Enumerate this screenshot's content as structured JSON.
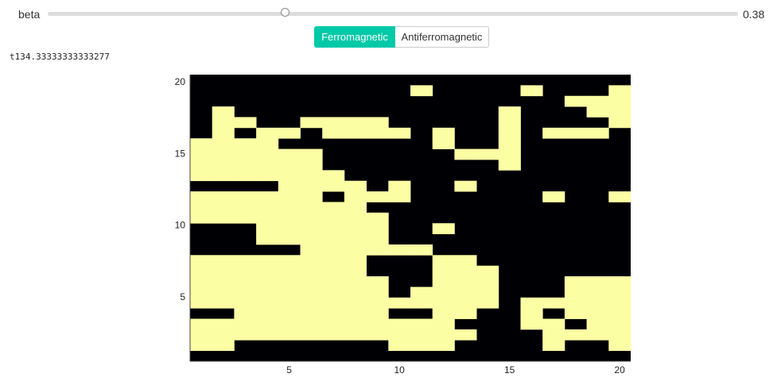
{
  "slider": {
    "label": "beta",
    "value": 0.38,
    "value_text": "0.38",
    "min": 0,
    "max": 1
  },
  "toggle": {
    "options": [
      "Ferromagnetic",
      "Antiferromagnetic"
    ],
    "selected": "Ferromagnetic"
  },
  "status": {
    "time_text": "t134.33333333333277"
  },
  "colors": {
    "spin_up": "#fcfea4",
    "spin_down": "#000004",
    "accent": "#00c9a7"
  },
  "chart_data": {
    "type": "heatmap",
    "x_ticks": [
      5,
      10,
      15,
      20
    ],
    "y_ticks": [
      5,
      10,
      15,
      20
    ],
    "xlim": [
      0.5,
      20.5
    ],
    "ylim": [
      0.5,
      20.5
    ],
    "rows_top_to_bottom": [
      "00000000000000000000",
      "00000000001000010001",
      "00000000000000000111",
      "01000000000000100011",
      "01100111100000100001",
      "01011011110100101110",
      "11110000000100100000",
      "11111100000011100000",
      "11111100000000100000",
      "11111110000000000000",
      "00001111010010000000",
      "11111101110000001001",
      "11111111000000000000",
      "11111111100000000000",
      "00011111100100000000",
      "00011111100000000000",
      "00000111111000000000",
      "11111111000110000000",
      "11111111000111000000",
      "11111111100111000111",
      "11111111101111000111",
      "11111111111111011111",
      "00111111100110010111",
      "11111111111100011011",
      "11111111111110001111",
      "11000000011100001001",
      "00000000000000000000"
    ]
  }
}
